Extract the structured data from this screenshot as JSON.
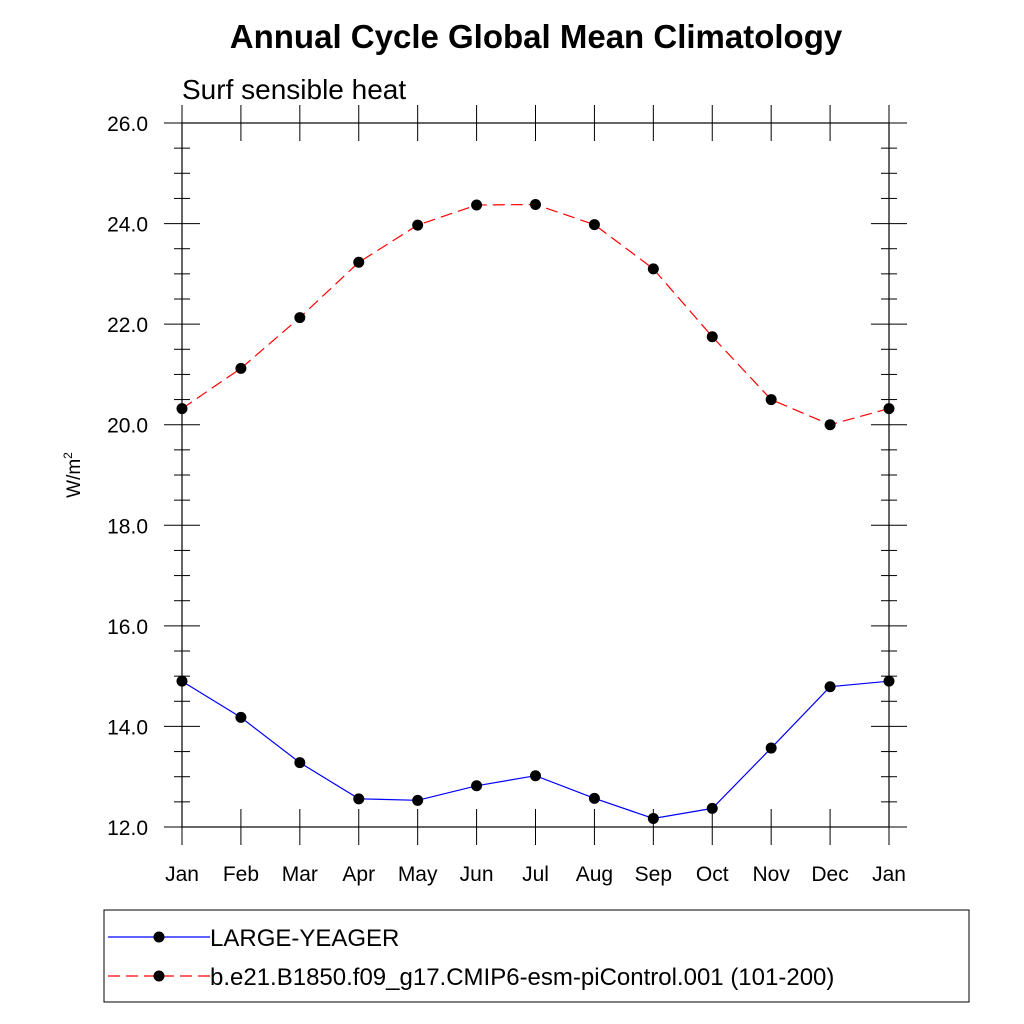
{
  "chart_data": {
    "type": "line",
    "title": "Annual Cycle Global Mean Climatology",
    "subtitle": "Surf sensible heat",
    "ylabel_base": "W/m",
    "ylabel_sup": "2",
    "xlabel": "",
    "ylim": [
      12.0,
      26.0
    ],
    "yticks": [
      "12.0",
      "14.0",
      "16.0",
      "18.0",
      "20.0",
      "22.0",
      "24.0",
      "26.0"
    ],
    "categories": [
      "Jan",
      "Feb",
      "Mar",
      "Apr",
      "May",
      "Jun",
      "Jul",
      "Aug",
      "Sep",
      "Oct",
      "Nov",
      "Dec",
      "Jan"
    ],
    "grid": false,
    "legend_position": "bottom",
    "series": [
      {
        "name": "LARGE-YEAGER",
        "color": "#0000ff",
        "style": "solid",
        "marker": "filled-circle",
        "values": [
          14.9,
          14.18,
          13.28,
          12.56,
          12.53,
          12.82,
          13.02,
          12.57,
          12.17,
          12.37,
          13.57,
          14.79,
          14.9
        ]
      },
      {
        "name": "b.e21.B1850.f09_g17.CMIP6-esm-piControl.001 (101-200)",
        "color": "#ff0000",
        "style": "dashed",
        "marker": "filled-circle",
        "values": [
          20.32,
          21.12,
          22.13,
          23.23,
          23.97,
          24.37,
          24.38,
          23.98,
          23.1,
          21.75,
          20.5,
          20.0,
          20.32
        ]
      }
    ]
  }
}
